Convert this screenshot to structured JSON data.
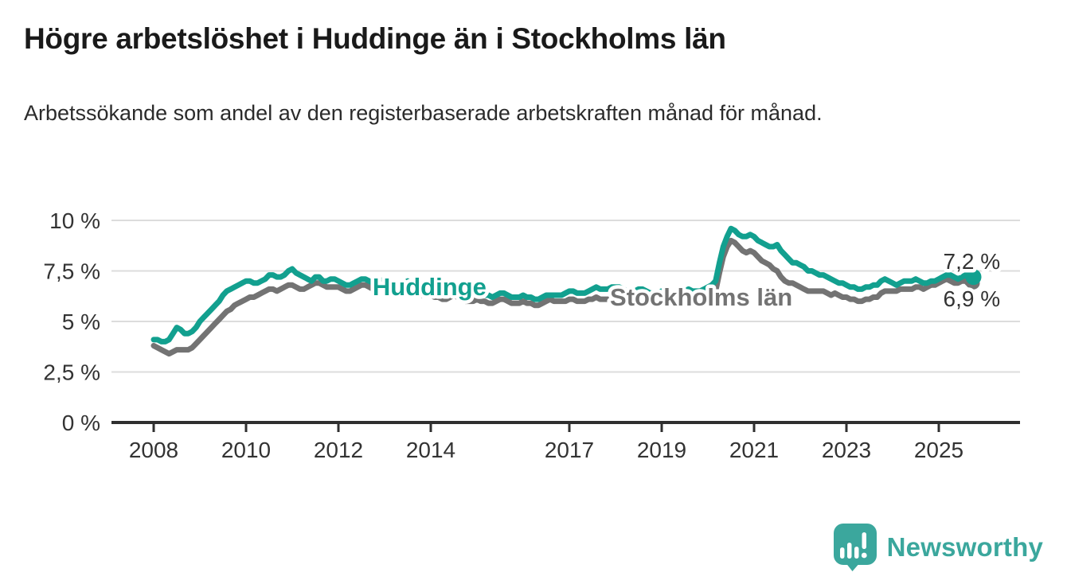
{
  "title": "Högre arbetslöshet i Huddinge än i Stockholms län",
  "subtitle": "Arbetssökande som andel av den registerbaserade arbetskraften månad för månad.",
  "branding": {
    "logo_text": "Newsworthy",
    "logo_icon": "bar-chart-speech-bubble-icon"
  },
  "colors": {
    "huddinge": "#12a08f",
    "stockholm": "#737373",
    "dark": "#333333",
    "grid": "#dcdcdc",
    "axis": "#2f2f2f",
    "logo": "#3ba79d",
    "title": "#1a1a1a",
    "subtitle": "#2b2b2b",
    "background": "#ffffff"
  },
  "chart_data": {
    "type": "line",
    "title": "Högre arbetslöshet i Huddinge än i Stockholms län",
    "subtitle": "Arbetssökande som andel av den registerbaserade arbetskraften månad för månad.",
    "unit": "%",
    "frequency": "monthly",
    "x_start_year": 2008,
    "x_end": "2025-10",
    "xlim": [
      2007.1,
      2026.7
    ],
    "ylim": [
      0,
      10.5
    ],
    "grid": "horizontal",
    "legend": "inline-labels",
    "x_ticks": [
      2008,
      2010,
      2012,
      2014,
      2017,
      2019,
      2021,
      2023,
      2025
    ],
    "x_tick_labels": [
      "2008",
      "2010",
      "2012",
      "2014",
      "2017",
      "2019",
      "2021",
      "2023",
      "2025"
    ],
    "y_ticks": [
      0,
      2.5,
      5,
      7.5,
      10
    ],
    "y_tick_labels": [
      "0 %",
      "2,5 %",
      "5 %",
      "7,5 %",
      "10 %"
    ],
    "series": [
      {
        "name": "Huddinge",
        "color_key": "huddinge",
        "last_value": 7.2,
        "end_label": "7,2 %",
        "end_dot_radius": 10,
        "values": [
          4.1,
          4.1,
          4.0,
          4.0,
          4.1,
          4.4,
          4.7,
          4.6,
          4.4,
          4.4,
          4.5,
          4.7,
          5.0,
          5.2,
          5.4,
          5.6,
          5.8,
          6.0,
          6.3,
          6.5,
          6.6,
          6.7,
          6.8,
          6.9,
          7.0,
          7.0,
          6.9,
          6.9,
          7.0,
          7.1,
          7.3,
          7.3,
          7.2,
          7.2,
          7.3,
          7.5,
          7.6,
          7.4,
          7.3,
          7.2,
          7.1,
          7.0,
          7.2,
          7.2,
          7.0,
          7.0,
          7.1,
          7.1,
          7.0,
          6.9,
          6.8,
          6.8,
          6.9,
          7.0,
          7.1,
          7.1,
          7.0,
          6.9,
          7.0,
          7.0,
          7.1,
          7.0,
          6.9,
          6.8,
          6.8,
          6.9,
          7.0,
          6.9,
          6.8,
          6.7,
          6.7,
          6.7,
          6.7,
          6.6,
          6.5,
          6.4,
          6.4,
          6.5,
          6.6,
          6.6,
          6.5,
          6.4,
          6.4,
          6.4,
          6.5,
          6.4,
          6.3,
          6.3,
          6.2,
          6.3,
          6.4,
          6.4,
          6.3,
          6.2,
          6.2,
          6.2,
          6.3,
          6.2,
          6.2,
          6.1,
          6.1,
          6.2,
          6.3,
          6.3,
          6.3,
          6.3,
          6.3,
          6.4,
          6.5,
          6.5,
          6.4,
          6.4,
          6.4,
          6.5,
          6.6,
          6.7,
          6.6,
          6.6,
          6.6,
          6.7,
          6.7,
          6.7,
          6.6,
          6.5,
          6.5,
          6.5,
          6.6,
          6.6,
          6.5,
          6.4,
          6.4,
          6.4,
          6.5,
          6.4,
          6.4,
          6.3,
          6.3,
          6.4,
          6.5,
          6.6,
          6.5,
          6.5,
          6.5,
          6.6,
          6.7,
          6.8,
          7.0,
          7.9,
          8.7,
          9.2,
          9.6,
          9.5,
          9.3,
          9.2,
          9.2,
          9.3,
          9.2,
          9.0,
          8.9,
          8.8,
          8.7,
          8.7,
          8.8,
          8.5,
          8.3,
          8.1,
          7.9,
          7.9,
          7.8,
          7.7,
          7.5,
          7.5,
          7.4,
          7.3,
          7.3,
          7.2,
          7.1,
          7.0,
          6.9,
          6.9,
          6.8,
          6.7,
          6.7,
          6.6,
          6.6,
          6.7,
          6.7,
          6.8,
          6.8,
          7.0,
          7.1,
          7.0,
          6.9,
          6.8,
          6.9,
          7.0,
          7.0,
          7.0,
          7.1,
          7.0,
          6.9,
          6.9,
          7.0,
          7.0,
          7.1,
          7.2,
          7.3,
          7.3,
          7.2,
          7.1,
          7.2,
          7.3,
          7.1,
          7.2
        ]
      },
      {
        "name": "Stockholms län",
        "color_key": "stockholm",
        "last_value": 6.9,
        "end_label": "6,9 %",
        "end_dot_radius": 8,
        "values": [
          3.8,
          3.7,
          3.6,
          3.5,
          3.4,
          3.5,
          3.6,
          3.6,
          3.6,
          3.6,
          3.7,
          3.9,
          4.1,
          4.3,
          4.5,
          4.7,
          4.9,
          5.1,
          5.3,
          5.5,
          5.6,
          5.8,
          5.9,
          6.0,
          6.1,
          6.2,
          6.2,
          6.3,
          6.4,
          6.5,
          6.6,
          6.6,
          6.5,
          6.6,
          6.7,
          6.8,
          6.8,
          6.7,
          6.6,
          6.6,
          6.7,
          6.8,
          6.9,
          6.9,
          6.8,
          6.7,
          6.7,
          6.7,
          6.7,
          6.6,
          6.5,
          6.5,
          6.6,
          6.7,
          6.8,
          6.8,
          6.7,
          6.6,
          6.6,
          6.7,
          6.7,
          6.6,
          6.6,
          6.5,
          6.5,
          6.6,
          6.6,
          6.5,
          6.4,
          6.3,
          6.3,
          6.3,
          6.3,
          6.2,
          6.2,
          6.1,
          6.1,
          6.2,
          6.3,
          6.2,
          6.1,
          6.0,
          6.0,
          6.0,
          6.1,
          6.0,
          6.0,
          5.9,
          5.9,
          6.0,
          6.1,
          6.1,
          6.0,
          5.9,
          5.9,
          5.9,
          6.0,
          5.9,
          5.9,
          5.8,
          5.8,
          5.9,
          6.0,
          6.1,
          6.0,
          6.0,
          6.0,
          6.0,
          6.1,
          6.1,
          6.0,
          6.0,
          6.0,
          6.1,
          6.1,
          6.2,
          6.1,
          6.1,
          6.1,
          6.1,
          6.1,
          6.1,
          6.0,
          6.0,
          5.9,
          6.0,
          6.1,
          6.1,
          6.0,
          5.9,
          5.9,
          5.9,
          6.0,
          5.9,
          5.9,
          5.8,
          5.8,
          5.9,
          6.0,
          6.1,
          6.0,
          6.0,
          6.0,
          6.1,
          6.2,
          6.3,
          6.5,
          7.4,
          8.2,
          8.7,
          9.0,
          8.9,
          8.7,
          8.5,
          8.4,
          8.5,
          8.4,
          8.2,
          8.0,
          7.9,
          7.8,
          7.6,
          7.5,
          7.2,
          7.0,
          6.9,
          6.9,
          6.8,
          6.7,
          6.6,
          6.5,
          6.5,
          6.5,
          6.5,
          6.5,
          6.4,
          6.3,
          6.4,
          6.3,
          6.2,
          6.2,
          6.1,
          6.1,
          6.0,
          6.0,
          6.1,
          6.1,
          6.2,
          6.2,
          6.4,
          6.5,
          6.5,
          6.5,
          6.5,
          6.6,
          6.6,
          6.6,
          6.6,
          6.7,
          6.7,
          6.6,
          6.7,
          6.8,
          6.8,
          6.9,
          7.0,
          7.1,
          7.0,
          6.9,
          6.9,
          7.0,
          7.0,
          6.8,
          6.9
        ]
      }
    ],
    "annotations": [
      {
        "text": "Huddinge",
        "color_key": "huddinge",
        "x_year": 2012.74,
        "y_pct": 6.3,
        "anchor": "start",
        "bold": true,
        "size": 31,
        "name": "series-label-huddinge"
      },
      {
        "text": "Stockholms län",
        "color_key": "stockholm",
        "x_year": 2017.88,
        "y_pct": 5.79,
        "anchor": "start",
        "bold": true,
        "size": 31,
        "name": "series-label-stockholms-lan"
      },
      {
        "text": "7,2 %",
        "color_key": "dark",
        "x_year": 2026.33,
        "y_pct": 7.6,
        "anchor": "end",
        "bold": false,
        "size": 28,
        "name": "end-value-label-huddinge"
      },
      {
        "text": "6,9 %",
        "color_key": "dark",
        "x_year": 2026.33,
        "y_pct": 5.75,
        "anchor": "end",
        "bold": false,
        "size": 28,
        "name": "end-value-label-stockholms-lan"
      }
    ]
  }
}
